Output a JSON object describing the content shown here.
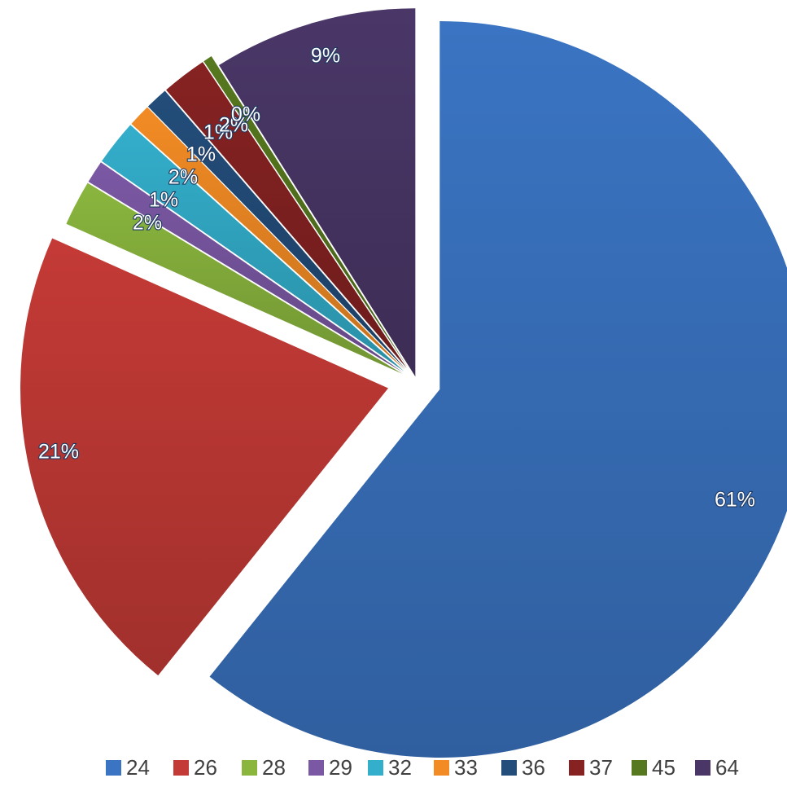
{
  "chart_data": {
    "type": "pie",
    "title": "",
    "categories": [
      "24",
      "26",
      "28",
      "29",
      "32",
      "33",
      "36",
      "37",
      "45",
      "64"
    ],
    "values": [
      61,
      21,
      2,
      1,
      2,
      1,
      1,
      2,
      0.4,
      9
    ],
    "data_labels": [
      "61%",
      "21%",
      "2%",
      "1%",
      "2%",
      "1%",
      "1%",
      "2%",
      "0%",
      "9%"
    ],
    "exploded": true,
    "legend": "bottom",
    "colors": [
      "#3a74c2",
      "#c43a36",
      "#8ab63e",
      "#7b58a4",
      "#33aecb",
      "#f28b24",
      "#234d7a",
      "#862222",
      "#56781e",
      "#4a3768"
    ]
  }
}
